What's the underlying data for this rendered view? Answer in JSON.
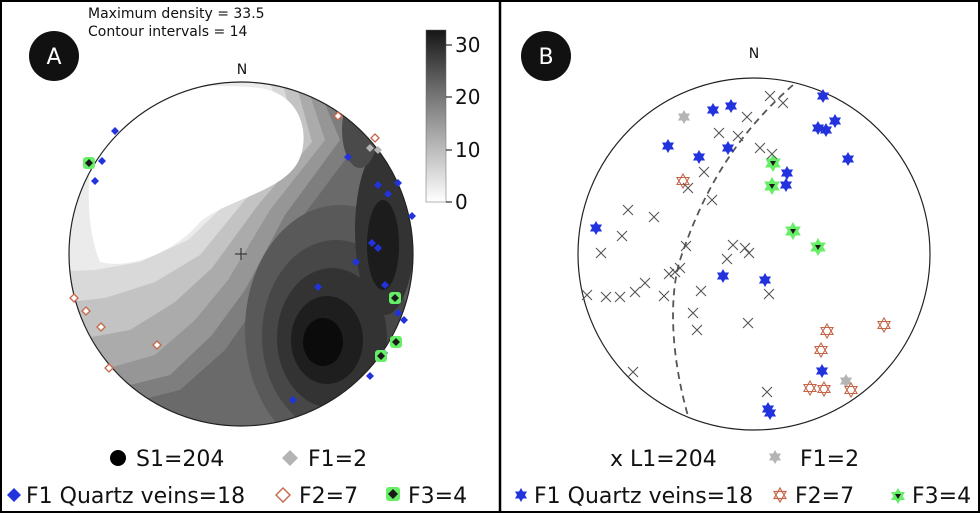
{
  "panel_a": {
    "badge": "A",
    "north": "N",
    "max_density": "Maximum density = 33.5",
    "contour_intervals": "Contour intervals = 14",
    "colorbar_ticks": [
      "30",
      "20",
      "10",
      "0"
    ],
    "legend": {
      "s1": "S1=204",
      "f1": "F1=2",
      "f1_quartz": "F1 Quartz veins=18",
      "f2": "F2=7",
      "f3": "F3=4"
    },
    "colors": {
      "quartz": "#2233dd",
      "f1": "#b4b4b4",
      "f2": "#c4664a",
      "f3": "#1a1a1a",
      "f3_halo": "#66ee66"
    }
  },
  "panel_b": {
    "badge": "B",
    "north": "N",
    "legend": {
      "l1": "x L1=204",
      "f1": "F1=2",
      "f1_quartz": "F1 Quartz veins=18",
      "f2": "F2=7",
      "f3": "F3=4"
    },
    "colors": {
      "quartz": "#2233dd",
      "f1": "#b4b4b4",
      "f2": "#c4664a",
      "f3": "#1a1a1a",
      "f3_halo": "#66ee66",
      "cross": "#555555"
    }
  }
}
